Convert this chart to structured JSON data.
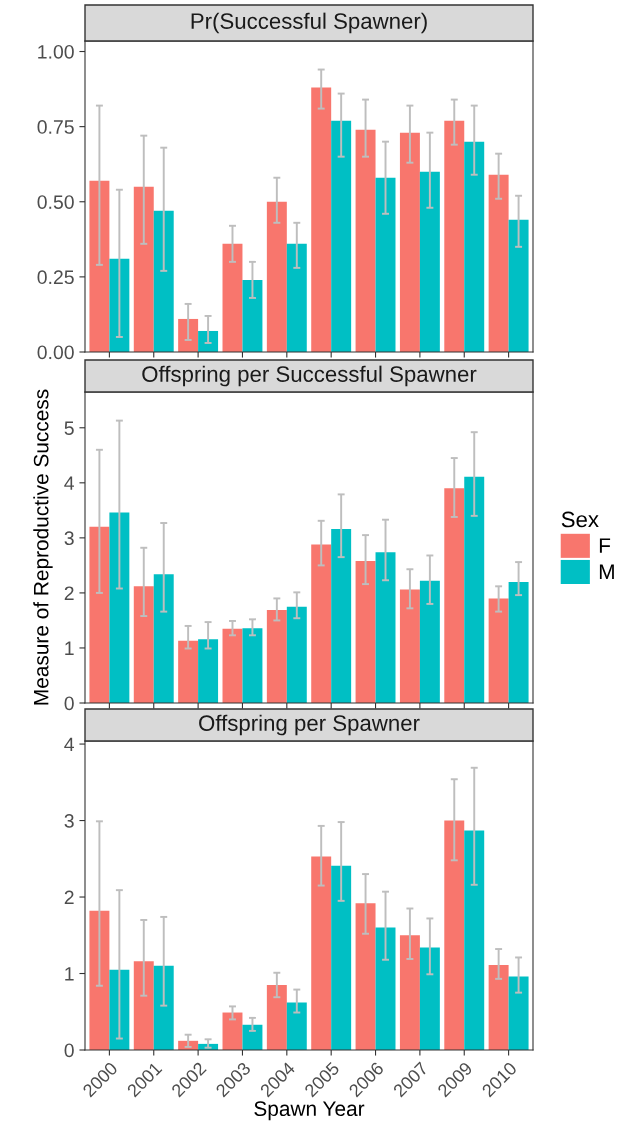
{
  "chart_data": [
    {
      "type": "bar",
      "title": "Pr(Successful Spawner)",
      "categories": [
        "2000",
        "2001",
        "2002",
        "2003",
        "2004",
        "2005",
        "2006",
        "2007",
        "2009",
        "2010"
      ],
      "ylim": [
        0,
        1.035
      ],
      "yticks": [
        {
          "value": 0,
          "label": "0.00"
        },
        {
          "value": 0.25,
          "label": "0.25"
        },
        {
          "value": 0.5,
          "label": "0.50"
        },
        {
          "value": 0.75,
          "label": "0.75"
        },
        {
          "value": 1,
          "label": "1.00"
        }
      ],
      "tick_labels": "y",
      "grid": false,
      "series": [
        {
          "color": "#f8766d",
          "values": [
            0.57,
            0.55,
            0.11,
            0.36,
            0.5,
            0.88,
            0.74,
            0.73,
            0.77,
            0.59
          ],
          "errors": [
            [
              0.29,
              0.82
            ],
            [
              0.36,
              0.72
            ],
            [
              0.04,
              0.16
            ],
            [
              0.3,
              0.42
            ],
            [
              0.43,
              0.58
            ],
            [
              0.81,
              0.94
            ],
            [
              0.65,
              0.84
            ],
            [
              0.63,
              0.82
            ],
            [
              0.69,
              0.84
            ],
            [
              0.51,
              0.66
            ]
          ]
        },
        {
          "color": "#00bfc4",
          "values": [
            0.31,
            0.47,
            0.07,
            0.24,
            0.36,
            0.77,
            0.58,
            0.6,
            0.7,
            0.44
          ],
          "errors": [
            [
              0.05,
              0.54
            ],
            [
              0.27,
              0.68
            ],
            [
              0.03,
              0.12
            ],
            [
              0.18,
              0.3
            ],
            [
              0.28,
              0.43
            ],
            [
              0.65,
              0.86
            ],
            [
              0.46,
              0.7
            ],
            [
              0.48,
              0.73
            ],
            [
              0.59,
              0.82
            ],
            [
              0.35,
              0.52
            ]
          ]
        }
      ]
    },
    {
      "type": "bar",
      "title": "Offspring per Successful Spawner",
      "ylabel": "Measure of Reproductive Success",
      "legend_title": "Sex",
      "legend": "right",
      "categories": [
        "2000",
        "2001",
        "2002",
        "2003",
        "2004",
        "2005",
        "2006",
        "2007",
        "2009",
        "2010"
      ],
      "ylim": [
        0,
        5.65
      ],
      "yticks": [
        0,
        1,
        2,
        3,
        4,
        5
      ],
      "tick_labels": "y",
      "grid": false,
      "series": [
        {
          "name": "F",
          "color": "#f8766d",
          "values": [
            3.2,
            2.12,
            1.13,
            1.35,
            1.69,
            2.88,
            2.58,
            2.06,
            3.9,
            1.9
          ],
          "errors": [
            [
              2.0,
              4.6
            ],
            [
              1.58,
              2.82
            ],
            [
              0.99,
              1.4
            ],
            [
              1.23,
              1.49
            ],
            [
              1.5,
              1.9
            ],
            [
              2.5,
              3.31
            ],
            [
              2.16,
              3.05
            ],
            [
              1.72,
              2.43
            ],
            [
              3.38,
              4.45
            ],
            [
              1.66,
              2.12
            ]
          ]
        },
        {
          "name": "M",
          "color": "#00bfc4",
          "values": [
            3.46,
            2.34,
            1.16,
            1.36,
            1.75,
            3.16,
            2.74,
            2.22,
            4.11,
            2.2
          ],
          "errors": [
            [
              2.08,
              5.13
            ],
            [
              1.66,
              3.27
            ],
            [
              0.99,
              1.47
            ],
            [
              1.23,
              1.52
            ],
            [
              1.54,
              2.01
            ],
            [
              2.65,
              3.79
            ],
            [
              2.23,
              3.33
            ],
            [
              1.8,
              2.68
            ],
            [
              3.4,
              4.92
            ],
            [
              1.96,
              2.56
            ]
          ]
        }
      ]
    },
    {
      "type": "bar",
      "title": "Offspring per Spawner",
      "xlabel": "Spawn Year",
      "categories": [
        "2000",
        "2001",
        "2002",
        "2003",
        "2004",
        "2005",
        "2006",
        "2007",
        "2009",
        "2010"
      ],
      "ylim": [
        0,
        4.04
      ],
      "yticks": [
        0,
        1,
        2,
        3,
        4
      ],
      "grid": false,
      "series": [
        {
          "color": "#f8766d",
          "values": [
            1.82,
            1.16,
            0.12,
            0.49,
            0.85,
            2.53,
            1.92,
            1.5,
            3.0,
            1.11
          ],
          "errors": [
            [
              0.84,
              2.99
            ],
            [
              0.71,
              1.7
            ],
            [
              0.04,
              0.2
            ],
            [
              0.4,
              0.57
            ],
            [
              0.69,
              1.01
            ],
            [
              2.15,
              2.93
            ],
            [
              1.52,
              2.3
            ],
            [
              1.19,
              1.85
            ],
            [
              2.48,
              3.54
            ],
            [
              0.93,
              1.32
            ]
          ]
        },
        {
          "color": "#00bfc4",
          "values": [
            1.05,
            1.1,
            0.08,
            0.33,
            0.62,
            2.41,
            1.6,
            1.34,
            2.87,
            0.96
          ],
          "errors": [
            [
              0.15,
              2.09
            ],
            [
              0.58,
              1.74
            ],
            [
              0.03,
              0.14
            ],
            [
              0.25,
              0.42
            ],
            [
              0.49,
              0.79
            ],
            [
              1.95,
              2.98
            ],
            [
              1.18,
              2.07
            ],
            [
              0.99,
              1.72
            ],
            [
              2.16,
              3.69
            ],
            [
              0.75,
              1.21
            ]
          ]
        }
      ]
    }
  ]
}
